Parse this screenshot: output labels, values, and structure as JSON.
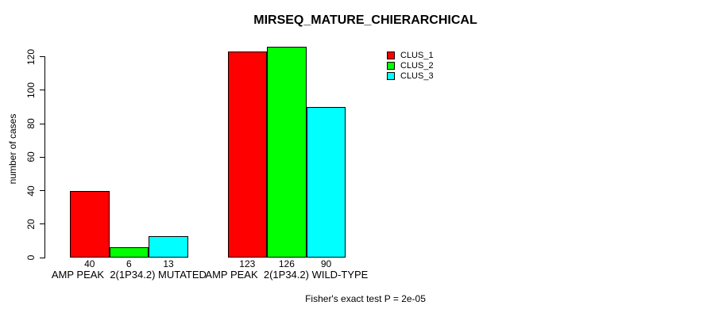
{
  "chart_data": {
    "type": "bar",
    "title": "MIRSEQ_MATURE_CHIERARCHICAL",
    "xlabel": "",
    "ylabel": "number of cases",
    "ylim": [
      0,
      120
    ],
    "yticks": [
      0,
      20,
      40,
      60,
      80,
      100,
      120
    ],
    "grid": false,
    "legend_position": "top-right",
    "categories": [
      "AMP PEAK  2(1P34.2) MUTATED",
      "AMP PEAK  2(1P34.2) WILD-TYPE"
    ],
    "series": [
      {
        "name": "CLUS_1",
        "color": "#ff0000",
        "values": [
          40,
          123
        ]
      },
      {
        "name": "CLUS_2",
        "color": "#00ff00",
        "values": [
          6,
          126
        ]
      },
      {
        "name": "CLUS_3",
        "color": "#00ffff",
        "values": [
          13,
          90
        ]
      }
    ],
    "bar_value_labels": [
      [
        40,
        6,
        13
      ],
      [
        123,
        126,
        90
      ]
    ],
    "annotation": "Fisher's exact test P = 2e-05",
    "axis_color": "#000000",
    "background_color": "#ffffff"
  }
}
